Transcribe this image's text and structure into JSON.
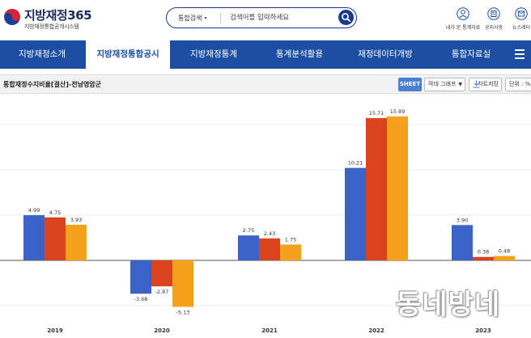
{
  "header": {
    "logo_title": "지방재정365",
    "logo_sub": "지방재정통합공개시스템",
    "search": {
      "category": "통합검색",
      "placeholder": "검색어를 입력하세요"
    },
    "utilities": [
      {
        "label": "내가 본 통계자료",
        "icon": "user-icon"
      },
      {
        "label": "공지사항",
        "icon": "notice-icon"
      },
      {
        "label": "뉴스레터",
        "icon": "newsletter-icon"
      }
    ]
  },
  "nav": {
    "items": [
      {
        "label": "지방재정소개",
        "active": false
      },
      {
        "label": "지방재정통합공시",
        "active": true
      },
      {
        "label": "지방재정통계",
        "active": false
      },
      {
        "label": "통계분석활용",
        "active": false
      },
      {
        "label": "재정데이터개방",
        "active": false
      },
      {
        "label": "통합자료실",
        "active": false
      }
    ]
  },
  "chart_toolbar": {
    "title": "통합재정수지비율[결산]-전남영암군",
    "sheet_label": "SHEET",
    "chart_type_value": "막대 그래프",
    "save_label": "차트저장",
    "unit_label": "단위 : %"
  },
  "colors": {
    "nav_bg": "#1c4fa3",
    "series_1": "#3b62c6",
    "series_2": "#d9431e",
    "series_3": "#f5a11c"
  },
  "chart_data": {
    "type": "bar",
    "categories": [
      "2019",
      "2020",
      "2021",
      "2022",
      "2023"
    ],
    "series": [
      {
        "values": [
          4.99,
          -3.68,
          2.75,
          10.21,
          3.9
        ]
      },
      {
        "values": [
          4.75,
          -2.87,
          2.43,
          15.71,
          0.38
        ]
      },
      {
        "values": [
          3.93,
          -5.13,
          1.75,
          15.89,
          0.48
        ]
      }
    ],
    "value_labels": [
      [
        "4.99",
        "-3.68",
        "2.75",
        "10.21",
        "3.90"
      ],
      [
        "4.75",
        "-2.87",
        "2.43",
        "15.71",
        "0.38"
      ],
      [
        "3.93",
        "-5.13",
        "1.75",
        "15.89",
        "0.48"
      ]
    ],
    "ylim": [
      -7.5,
      17.5
    ],
    "grid": true,
    "legend": "none"
  },
  "watermark": "동네방네"
}
